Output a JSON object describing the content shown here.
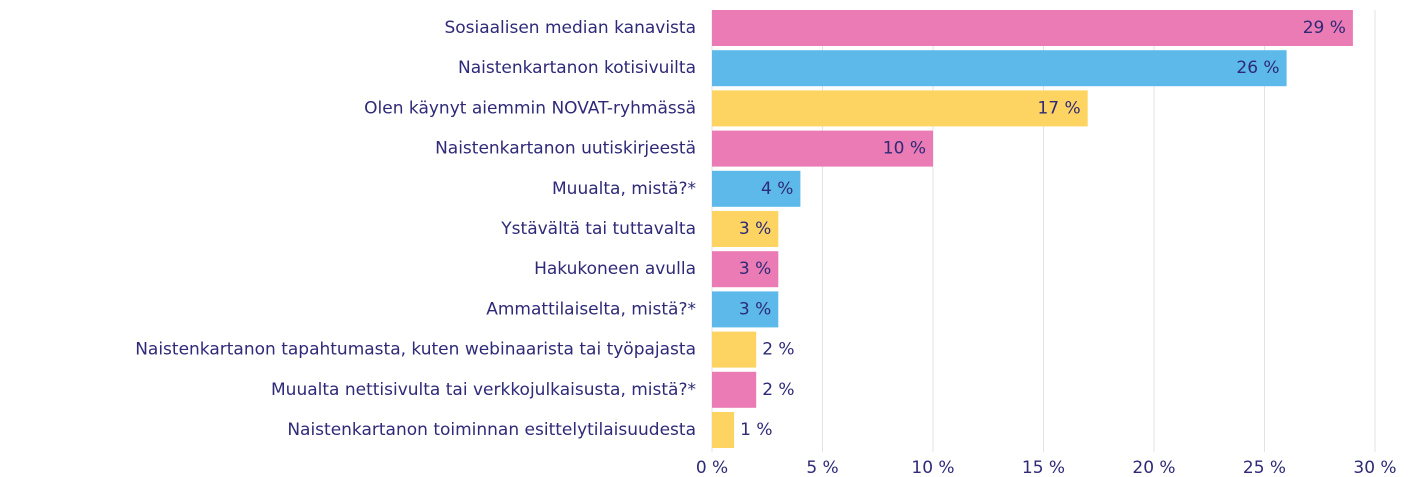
{
  "chart_data": {
    "type": "barh",
    "categories": [
      "Sosiaalisen median kanavista",
      "Naistenkartanon kotisivuilta",
      "Olen käynyt aiemmin NOVAT-ryhmässä",
      "Naistenkartanon uutiskirjeestä",
      "Muualta, mistä?*",
      "Ystävältä tai tuttavalta",
      "Hakukoneen avulla",
      "Ammattilaiselta, mistä?*",
      "Naistenkartanon tapahtumasta, kuten webinaarista tai työpajasta",
      "Muualta nettisivulta tai verkkojulkaisusta, mistä?*",
      "Naistenkartanon toiminnan esittelytilaisuudesta"
    ],
    "values": [
      29,
      26,
      17,
      10,
      4,
      3,
      3,
      3,
      2,
      2,
      1
    ],
    "value_labels": [
      "29 %",
      "26 %",
      "17 %",
      "10 %",
      "4 %",
      "3 %",
      "3 %",
      "3 %",
      "2 %",
      "2 %",
      "1 %"
    ],
    "colors": [
      "#ea7bb4",
      "#5cb9e9",
      "#fdd462",
      "#ea7bb4",
      "#5cb9e9",
      "#fdd462",
      "#ea7bb4",
      "#5cb9e9",
      "#fdd462",
      "#ea7bb4",
      "#fdd462"
    ],
    "xlim": [
      0,
      30
    ],
    "xticks": [
      {
        "value": 0,
        "label": "0 %"
      },
      {
        "value": 5,
        "label": "5 %"
      },
      {
        "value": 10,
        "label": "10 %"
      },
      {
        "value": 15,
        "label": "15 %"
      },
      {
        "value": 20,
        "label": "20 %"
      },
      {
        "value": 25,
        "label": "25 %"
      },
      {
        "value": 30,
        "label": "30 %"
      }
    ],
    "grid": true
  }
}
